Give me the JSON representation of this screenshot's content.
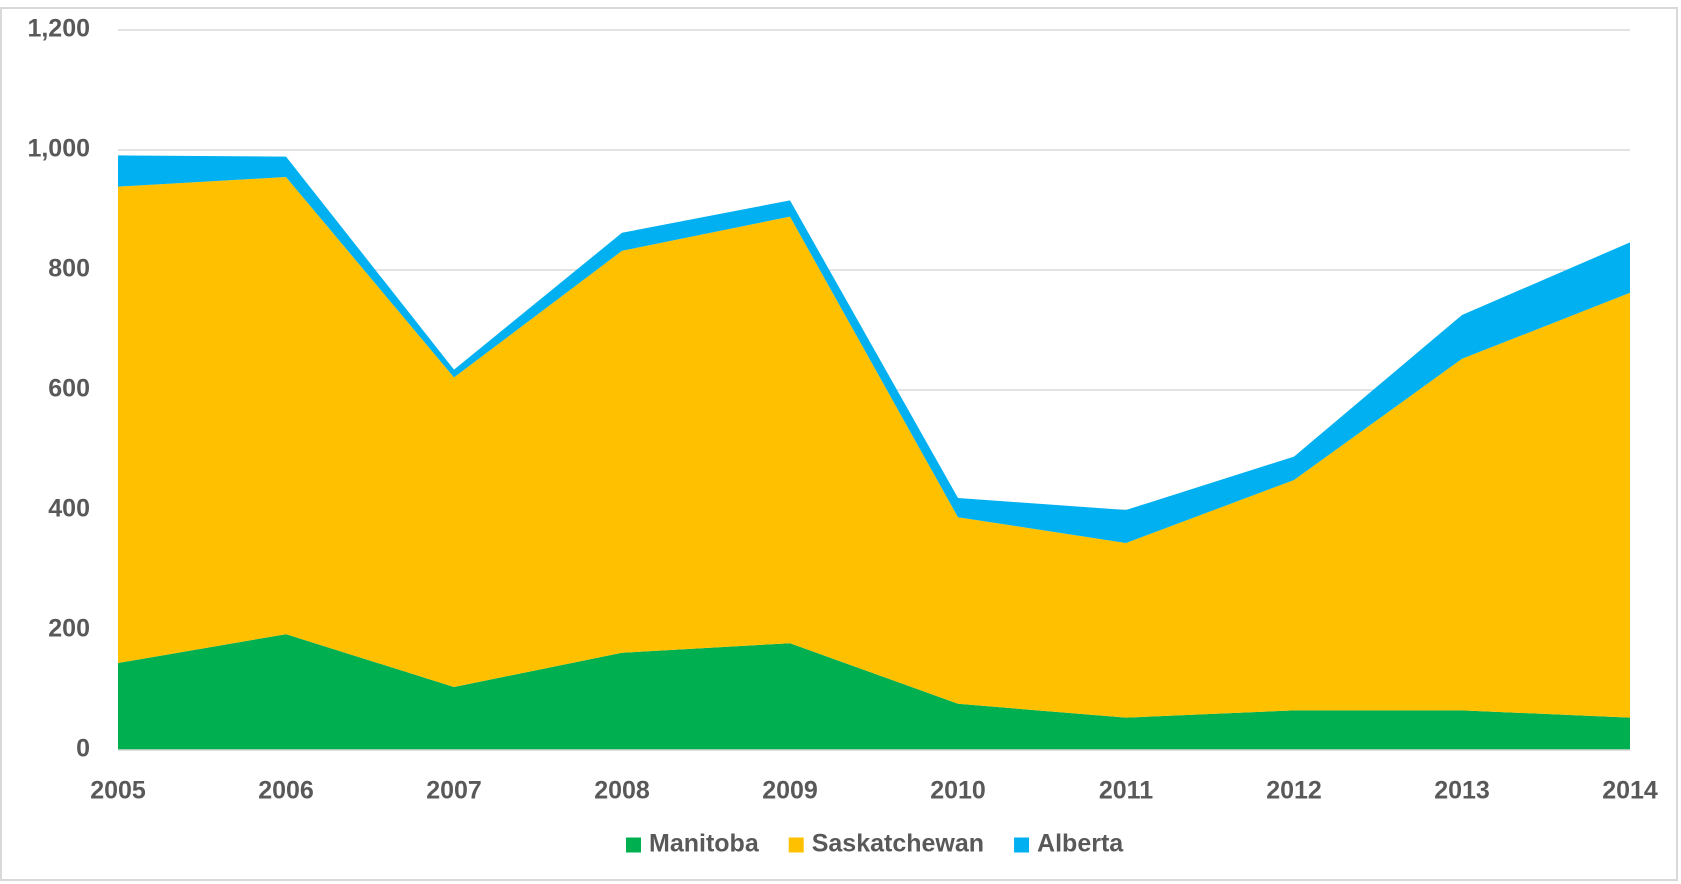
{
  "chart_data": {
    "type": "stacked_area",
    "x": [
      2005,
      2006,
      2007,
      2008,
      2009,
      2010,
      2011,
      2012,
      2013,
      2014
    ],
    "xlim": [
      2005,
      2014
    ],
    "series": [
      {
        "name": "Manitoba",
        "color": "#00b050",
        "values": [
          145,
          193,
          105,
          162,
          178,
          77,
          54,
          66,
          66,
          54
        ]
      },
      {
        "name": "Saskatchewan",
        "color": "#ffc000",
        "values": [
          794,
          762,
          516,
          670,
          711,
          311,
          291,
          384,
          586,
          708
        ]
      },
      {
        "name": "Alberta",
        "color": "#00b0f0",
        "values": [
          52,
          34,
          13,
          30,
          27,
          32,
          55,
          39,
          73,
          84
        ]
      }
    ],
    "ylim": [
      0,
      1200
    ],
    "yticks": [
      0,
      200,
      400,
      600,
      800,
      {
        "value": 1000,
        "label": "1,000"
      },
      {
        "value": 1200,
        "label": "1,200"
      }
    ],
    "grid": true,
    "legend": "bottom"
  }
}
